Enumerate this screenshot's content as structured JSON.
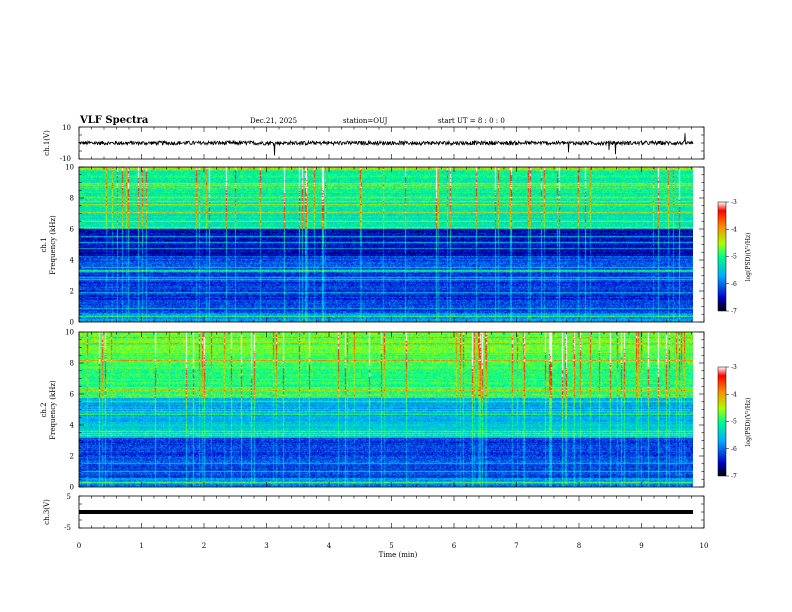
{
  "chart_data": {
    "type": "heatmap",
    "title": "VLF Spectra",
    "header": {
      "date": "Dec.21, 2025",
      "station": "station=OUJ",
      "start": "start  UT =   8 : 0  : 0"
    },
    "xlabel": "Time  (min)",
    "xlim": [
      0,
      10
    ],
    "xticks": [
      "0",
      "1",
      "2",
      "3",
      "4",
      "5",
      "6",
      "7",
      "8",
      "9",
      "10"
    ],
    "panels": [
      {
        "id": "ch1-waveform",
        "type": "line",
        "ylabel": "ch.1(V)",
        "yticks": [
          "10",
          "-10"
        ],
        "ylim": [
          -10,
          10
        ],
        "baseline": 0
      },
      {
        "id": "ch1-spectrogram",
        "type": "heatmap",
        "ylabel_line1": "ch.1",
        "ylabel_line2": "Frequency  (kHz)",
        "ylim": [
          0,
          10
        ],
        "yticks": [
          "0",
          "2",
          "4",
          "6",
          "8",
          "10"
        ]
      },
      {
        "id": "ch2-spectrogram",
        "type": "heatmap",
        "ylabel_line1": "ch.2",
        "ylabel_line2": "Frequency  (kHz)",
        "ylim": [
          0,
          10
        ],
        "yticks": [
          "0",
          "2",
          "4",
          "6",
          "8",
          "10"
        ]
      },
      {
        "id": "ch3-waveform",
        "type": "line",
        "ylabel": "ch.3(V)",
        "yticks": [
          "5",
          "-5"
        ],
        "ylim": [
          -5,
          5
        ],
        "baseline": 0
      }
    ],
    "colorbar": {
      "label": "log(PSD)(V²/Hz)",
      "ticks": [
        "-3",
        "-4",
        "-5",
        "-6",
        "-7"
      ],
      "range": [
        -7,
        -3
      ],
      "colors": [
        "#000000",
        "#0000c8",
        "#00aaff",
        "#00ff88",
        "#aaff00",
        "#ff8800",
        "#ff0000",
        "#ffffff"
      ]
    },
    "data_cutoff_min": 9.82
  }
}
